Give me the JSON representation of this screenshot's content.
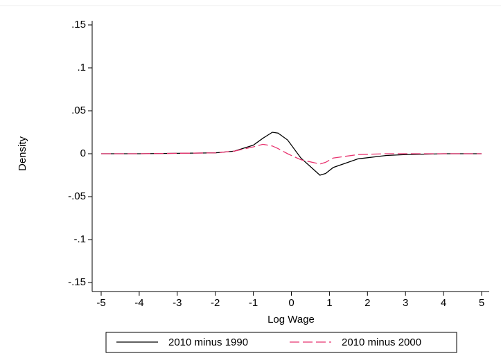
{
  "chart_data": {
    "type": "line",
    "x_label": "Log Wage",
    "y_label": "Density",
    "x": [
      -5,
      -4,
      -3,
      -2,
      -1.5,
      -1,
      -0.75,
      -0.5,
      -0.35,
      -0.1,
      0.25,
      0.75,
      0.9,
      1.1,
      1.75,
      2.5,
      3,
      4,
      5
    ],
    "series": [
      {
        "name": "2010 minus 1990",
        "color": "#000000",
        "dash": false,
        "values": [
          0,
          0,
          0.0005,
          0.001,
          0.003,
          0.01,
          0.018,
          0.025,
          0.024,
          0.016,
          -0.005,
          -0.025,
          -0.023,
          -0.016,
          -0.006,
          -0.002,
          -0.001,
          0,
          0
        ]
      },
      {
        "name": "2010 minus 2000",
        "color": "#e8336f",
        "dash": true,
        "values": [
          0,
          0,
          0.0005,
          0.001,
          0.003,
          0.008,
          0.011,
          0.009,
          0.006,
          0,
          -0.007,
          -0.012,
          -0.01,
          -0.005,
          -0.001,
          0,
          0,
          0,
          0
        ]
      }
    ],
    "xlim": [
      -5,
      5
    ],
    "xticks": [
      -5,
      -4,
      -3,
      -2,
      -1,
      0,
      1,
      2,
      3,
      4,
      5
    ],
    "ylim": [
      -0.15,
      0.15
    ],
    "yticks": [
      {
        "value": -0.15,
        "label": "-.15"
      },
      {
        "value": -0.1,
        "label": "-.1"
      },
      {
        "value": -0.05,
        "label": "-.05"
      },
      0,
      {
        "value": 0.05,
        "label": ".05"
      },
      {
        "value": 0.1,
        "label": ".1"
      },
      {
        "value": 0.15,
        "label": ".15"
      }
    ],
    "legend": "bottom"
  }
}
